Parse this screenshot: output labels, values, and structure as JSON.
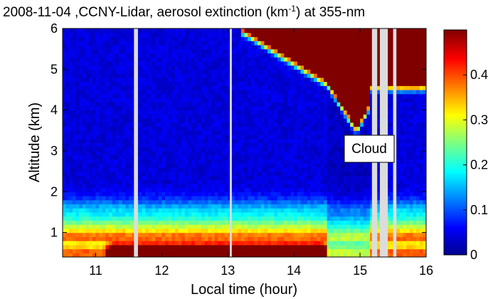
{
  "chart_data": {
    "type": "heatmap",
    "title_main": "2008-11-04 ,CCNY-Lidar, aerosol extinction (km",
    "title_sup": "-1",
    "title_tail": ") at 355-nm",
    "xlabel": "Local time (hour)",
    "ylabel": "Altitude (km)",
    "xlim": [
      10.5,
      16.0
    ],
    "ylim": [
      0.4,
      6.0
    ],
    "xticks": [
      "11",
      "12",
      "13",
      "14",
      "15",
      "16"
    ],
    "xtick_values": [
      11,
      12,
      13,
      14,
      15,
      16
    ],
    "yticks": [
      "1",
      "2",
      "3",
      "4",
      "5",
      "6"
    ],
    "ytick_values": [
      1,
      2,
      3,
      4,
      5,
      6
    ],
    "colorbar": {
      "range": [
        0,
        0.5
      ],
      "ticks": [
        "0",
        "0.1",
        "0.2",
        "0.3",
        "0.4"
      ],
      "tick_values": [
        0,
        0.1,
        0.2,
        0.3,
        0.4
      ],
      "colormap": "jet"
    },
    "data_gaps_hours": [
      [
        11.58,
        11.64
      ],
      [
        13.03,
        13.06
      ],
      [
        15.18,
        15.26
      ],
      [
        15.3,
        15.42
      ],
      [
        15.5,
        15.55
      ]
    ],
    "annotation": {
      "text": "Cloud",
      "x": 15.05,
      "y": 3.05
    },
    "colors": {
      "background": "#ffffff",
      "gap": "#dcdcdc"
    }
  }
}
